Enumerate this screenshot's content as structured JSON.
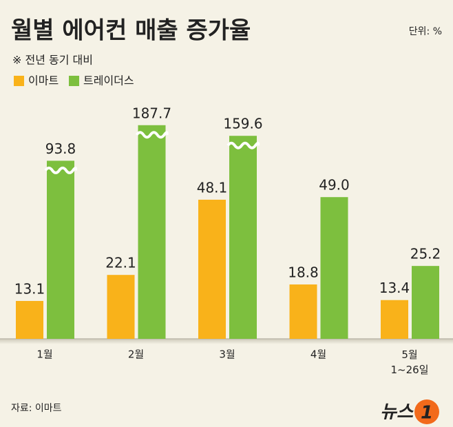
{
  "chart_data": {
    "type": "bar",
    "title": "월별 에어컨 매출 증가율",
    "unit": "단위: %",
    "subtitle": "※ 전년 동기 대비",
    "source": "자료: 이마트",
    "categories": [
      "1월",
      "2월",
      "3월",
      "4월",
      "5월\n1~26일"
    ],
    "series": [
      {
        "name": "이마트",
        "color": "#f9b21a",
        "values": [
          13.1,
          22.1,
          48.1,
          18.8,
          13.4
        ]
      },
      {
        "name": "트레이더스",
        "color": "#7dbf3e",
        "values": [
          93.8,
          187.7,
          159.6,
          49.0,
          25.2
        ],
        "value_labels": [
          "93.8",
          "187.7",
          "159.6",
          "49.0",
          "25.2"
        ]
      }
    ]
  },
  "logo": {
    "text": "뉴스",
    "mark": "1"
  }
}
